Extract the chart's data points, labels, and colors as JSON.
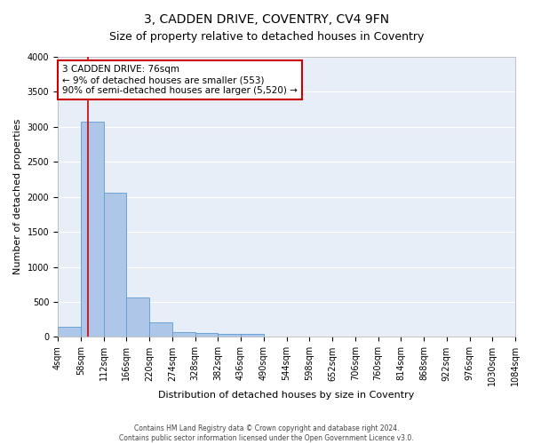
{
  "title": "3, CADDEN DRIVE, COVENTRY, CV4 9FN",
  "subtitle": "Size of property relative to detached houses in Coventry",
  "xlabel": "Distribution of detached houses by size in Coventry",
  "ylabel": "Number of detached properties",
  "bin_edges": [
    4,
    58,
    112,
    166,
    220,
    274,
    328,
    382,
    436,
    490,
    544,
    598,
    652,
    706,
    760,
    814,
    868,
    922,
    976,
    1030,
    1084
  ],
  "bar_heights": [
    140,
    3080,
    2060,
    560,
    215,
    75,
    55,
    45,
    45,
    0,
    0,
    0,
    0,
    0,
    0,
    0,
    0,
    0,
    0,
    0
  ],
  "bar_color": "#aec6e8",
  "bar_edge_color": "#5b9bd5",
  "property_size": 76,
  "vline_color": "#cc0000",
  "annotation_text": "3 CADDEN DRIVE: 76sqm\n← 9% of detached houses are smaller (553)\n90% of semi-detached houses are larger (5,520) →",
  "annotation_box_color": "#ffffff",
  "annotation_border_color": "#cc0000",
  "ylim": [
    0,
    4000
  ],
  "yticks": [
    0,
    500,
    1000,
    1500,
    2000,
    2500,
    3000,
    3500,
    4000
  ],
  "background_color": "#e8eef8",
  "footer_line1": "Contains HM Land Registry data © Crown copyright and database right 2024.",
  "footer_line2": "Contains public sector information licensed under the Open Government Licence v3.0.",
  "title_fontsize": 10,
  "subtitle_fontsize": 9,
  "tick_label_size": 7,
  "ylabel_fontsize": 8,
  "xlabel_fontsize": 8
}
